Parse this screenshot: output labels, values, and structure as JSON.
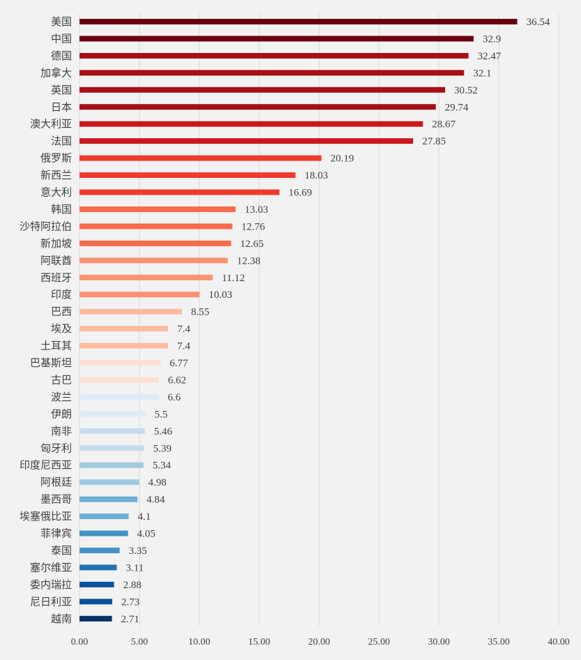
{
  "chart_data": {
    "type": "bar",
    "orientation": "horizontal",
    "categories": [
      "美国",
      "中国",
      "德国",
      "加拿大",
      "英国",
      "日本",
      "澳大利亚",
      "法国",
      "俄罗斯",
      "新西兰",
      "意大利",
      "韩国",
      "沙特阿拉伯",
      "新加坡",
      "阿联酋",
      "西班牙",
      "印度",
      "巴西",
      "埃及",
      "土耳其",
      "巴基斯坦",
      "古巴",
      "波兰",
      "伊朗",
      "南非",
      "匈牙利",
      "印度尼西亚",
      "阿根廷",
      "墨西哥",
      "埃塞俄比亚",
      "菲律宾",
      "泰国",
      "塞尔维亚",
      "委内瑞拉",
      "尼日利亚",
      "越南"
    ],
    "values": [
      36.54,
      32.9,
      32.47,
      32.1,
      30.52,
      29.74,
      28.67,
      27.85,
      20.19,
      18.03,
      16.69,
      13.03,
      12.76,
      12.65,
      12.38,
      11.12,
      10.03,
      8.55,
      7.4,
      7.4,
      6.77,
      6.62,
      6.6,
      5.5,
      5.46,
      5.39,
      5.34,
      4.98,
      4.84,
      4.1,
      4.05,
      3.35,
      3.11,
      2.88,
      2.73,
      2.71
    ],
    "value_labels": [
      "36.54",
      "32.9",
      "32.47",
      "32.1",
      "30.52",
      "29.74",
      "28.67",
      "27.85",
      "20.19",
      "18.03",
      "16.69",
      "13.03",
      "12.76",
      "12.65",
      "12.38",
      "11.12",
      "10.03",
      "8.55",
      "7.4",
      "7.4",
      "6.77",
      "6.62",
      "6.6",
      "5.5",
      "5.46",
      "5.39",
      "5.34",
      "4.98",
      "4.84",
      "4.1",
      "4.05",
      "3.35",
      "3.11",
      "2.88",
      "2.73",
      "2.71"
    ],
    "colors": [
      "#67000d",
      "#6b010e",
      "#a50f15",
      "#a50f15",
      "#a50f15",
      "#a50f15",
      "#cb181d",
      "#cb181d",
      "#ef3b2c",
      "#ef3b2c",
      "#ef3b2c",
      "#fb6a4a",
      "#fb6a4a",
      "#fb6a4a",
      "#fc9272",
      "#fc9272",
      "#fc9272",
      "#fcbba1",
      "#fcbba1",
      "#fcbba1",
      "#fee0d2",
      "#fee0d2",
      "#deebf7",
      "#deebf7",
      "#c6dbef",
      "#c6dbef",
      "#9ecae1",
      "#9ecae1",
      "#6baed6",
      "#6baed6",
      "#4292c6",
      "#4292c6",
      "#2171b5",
      "#08519c",
      "#08519c",
      "#08306b"
    ],
    "xlim": [
      0,
      40
    ],
    "xticks": [
      "0.00",
      "5.00",
      "10.00",
      "15.00",
      "20.00",
      "25.00",
      "30.00",
      "35.00",
      "40.00"
    ],
    "grid": "vertical",
    "title": "",
    "xlabel": "",
    "ylabel": ""
  }
}
